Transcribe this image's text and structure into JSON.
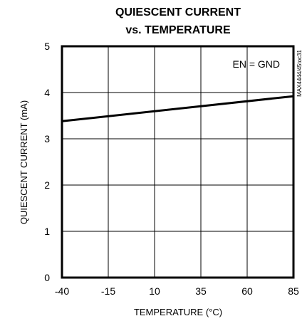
{
  "chart_data": {
    "type": "line",
    "title": [
      "QUIESCENT CURRENT",
      "vs. TEMPERATURE"
    ],
    "xlabel": "TEMPERATURE (°C)",
    "ylabel": "QUIESCENT CURRENT (mA)",
    "xlim": [
      -40,
      85
    ],
    "ylim": [
      0,
      5
    ],
    "xticks": [
      -40,
      -15,
      10,
      35,
      60,
      85
    ],
    "yticks": [
      0,
      1,
      2,
      3,
      4,
      5
    ],
    "grid": true,
    "annotation": "EN = GND",
    "figure_id": "MAX4444/45toc31",
    "series": [
      {
        "x": [
          -40,
          85
        ],
        "y": [
          3.38,
          3.92
        ]
      }
    ],
    "colors": {
      "line": "#000000",
      "grid": "#000000",
      "background": "#ffffff"
    }
  }
}
